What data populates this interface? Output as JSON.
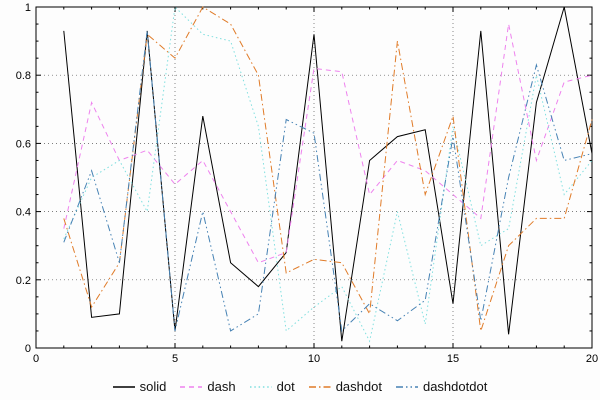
{
  "chart_data": {
    "type": "line",
    "title": "",
    "xlabel": "",
    "ylabel": "",
    "xlim": [
      0,
      20
    ],
    "ylim": [
      0,
      1
    ],
    "xticks": [
      0,
      5,
      10,
      15,
      20
    ],
    "yticks": [
      0,
      0.2,
      0.4,
      0.6,
      0.8,
      1
    ],
    "grid": true,
    "legend_position": "bottom",
    "x": [
      1,
      2,
      3,
      4,
      5,
      6,
      7,
      8,
      9,
      10,
      11,
      12,
      13,
      14,
      15,
      16,
      17,
      18,
      19,
      20
    ],
    "series": [
      {
        "name": "solid",
        "linestyle": "solid",
        "color": "#000000",
        "values": [
          0.93,
          0.09,
          0.1,
          0.93,
          0.05,
          0.68,
          0.25,
          0.18,
          0.28,
          0.92,
          0.02,
          0.55,
          0.62,
          0.64,
          0.13,
          0.93,
          0.04,
          0.72,
          1.0,
          0.57
        ]
      },
      {
        "name": "dash",
        "linestyle": "dash",
        "color": "#EE82EE",
        "values": [
          0.35,
          0.72,
          0.55,
          0.58,
          0.48,
          0.55,
          0.4,
          0.25,
          0.28,
          0.82,
          0.81,
          0.45,
          0.55,
          0.52,
          0.45,
          0.38,
          0.95,
          0.55,
          0.78,
          0.8
        ]
      },
      {
        "name": "dot",
        "linestyle": "dot",
        "color": "#7FDFDF",
        "values": [
          0.32,
          0.5,
          0.55,
          0.4,
          1.0,
          0.92,
          0.9,
          0.65,
          0.05,
          0.12,
          0.18,
          0.02,
          0.4,
          0.07,
          0.65,
          0.3,
          0.35,
          0.8,
          0.45,
          0.55
        ]
      },
      {
        "name": "dashdot",
        "linestyle": "dashdot",
        "color": "#E07B28",
        "values": [
          0.38,
          0.12,
          0.25,
          0.92,
          0.85,
          1.0,
          0.95,
          0.8,
          0.22,
          0.26,
          0.25,
          0.1,
          0.9,
          0.45,
          0.68,
          0.05,
          0.3,
          0.38,
          0.38,
          0.67
        ]
      },
      {
        "name": "dashdotdot",
        "linestyle": "dashdotdot",
        "color": "#4682B4",
        "values": [
          0.31,
          0.52,
          0.25,
          0.93,
          0.05,
          0.4,
          0.05,
          0.1,
          0.67,
          0.63,
          0.05,
          0.13,
          0.08,
          0.14,
          0.62,
          0.08,
          0.5,
          0.83,
          0.55,
          0.57
        ]
      }
    ]
  }
}
